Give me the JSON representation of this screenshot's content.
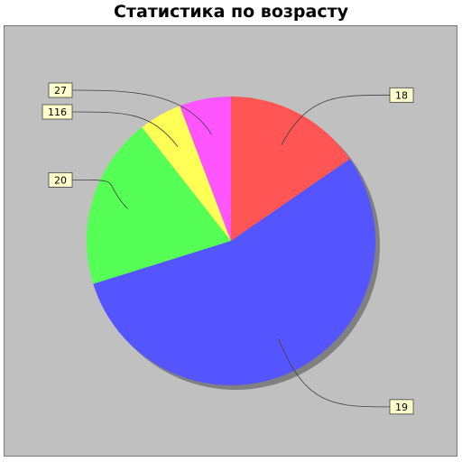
{
  "chart_data": {
    "type": "pie",
    "title": "Статистика по возрасту",
    "categories": [
      "18",
      "19",
      "20",
      "116",
      "27"
    ],
    "values": [
      16,
      57,
      20,
      5,
      6
    ],
    "colors": [
      "#ff5555",
      "#5555ff",
      "#55ff55",
      "#ffff55",
      "#ff55ff"
    ],
    "start_angle_deg": 90,
    "direction": "clockwise",
    "legend": "none",
    "background": "#c0c0c0",
    "label_background": "#ffffcc"
  }
}
